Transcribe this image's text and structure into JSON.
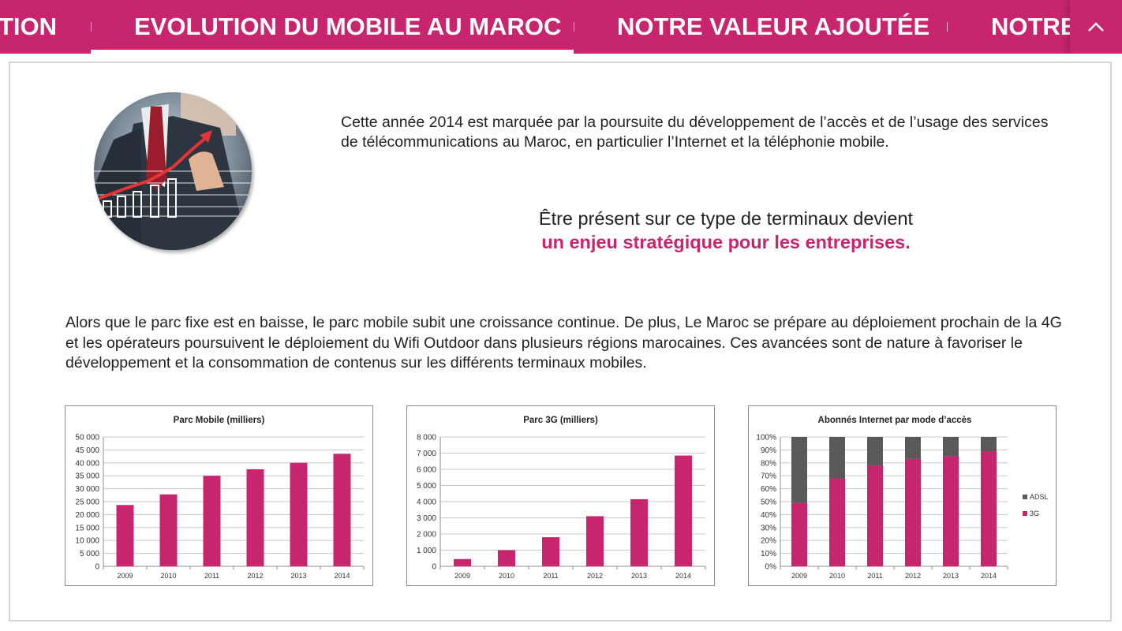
{
  "nav": {
    "tabs": [
      {
        "label": "TION"
      },
      {
        "label": "EVOLUTION DU MOBILE AU MAROC"
      },
      {
        "label": "NOTRE VALEUR AJOUTÉE"
      },
      {
        "label": "NOTRE"
      }
    ],
    "active_tab": 1,
    "separator": "|"
  },
  "colors": {
    "accent": "#c8256f",
    "adsl": "#595959",
    "bar": "#c8256f"
  },
  "content": {
    "intro": "Cette année 2014 est marquée par la poursuite du développement de l’accès et de l’usage des services de télécommunications au Maroc, en particulier l’Internet et la téléphonie mobile.",
    "quote_line1": "Être présent sur ce type de terminaux devient",
    "quote_line2": "un enjeu stratégique pour les entreprises.",
    "paragraph": "Alors que le parc fixe est en baisse, le parc mobile subit une croissance continue. De plus, Le Maroc se prépare au déploiement prochain de la 4G et les opérateurs poursuivent le déploiement du Wifi Outdoor dans plusieurs régions marocaines. Ces avancées sont de nature à favoriser le développement et la consommation de contenus sur les différents terminaux mobiles."
  },
  "chart_data": [
    {
      "type": "bar",
      "title": "Parc Mobile (milliers)",
      "categories": [
        "2009",
        "2010",
        "2011",
        "2012",
        "2013",
        "2014"
      ],
      "values": [
        23700,
        27800,
        35000,
        37500,
        40000,
        43500
      ],
      "yticks": [
        "0",
        "5 000",
        "10 000",
        "15 000",
        "20 000",
        "25 000",
        "30 000",
        "35 000",
        "40 000",
        "45 000",
        "50 000"
      ],
      "ylim": [
        0,
        50000
      ],
      "grid": true
    },
    {
      "type": "bar",
      "title": "Parc 3G (milliers)",
      "categories": [
        "2009",
        "2010",
        "2011",
        "2012",
        "2013",
        "2014"
      ],
      "values": [
        450,
        1000,
        1800,
        3100,
        4150,
        6850
      ],
      "yticks": [
        "0",
        "1 000",
        "2 000",
        "3 000",
        "4 000",
        "5 000",
        "6 000",
        "7 000",
        "8 000"
      ],
      "ylim": [
        0,
        8000
      ],
      "grid": true
    },
    {
      "type": "bar",
      "stacked": true,
      "title": "Abonnés Internet par mode d’accès",
      "categories": [
        "2009",
        "2010",
        "2011",
        "2012",
        "2013",
        "2014"
      ],
      "series": [
        {
          "name": "3G",
          "values": [
            49,
            68,
            78,
            83,
            85,
            89
          ]
        },
        {
          "name": "ADSL",
          "values": [
            51,
            32,
            22,
            17,
            15,
            11
          ]
        }
      ],
      "yticks": [
        "0%",
        "10%",
        "20%",
        "30%",
        "40%",
        "50%",
        "60%",
        "70%",
        "80%",
        "90%",
        "100%"
      ],
      "ylim": [
        0,
        100
      ],
      "legend": [
        "ADSL",
        "3G"
      ],
      "legend_position": "right",
      "grid": true
    }
  ]
}
